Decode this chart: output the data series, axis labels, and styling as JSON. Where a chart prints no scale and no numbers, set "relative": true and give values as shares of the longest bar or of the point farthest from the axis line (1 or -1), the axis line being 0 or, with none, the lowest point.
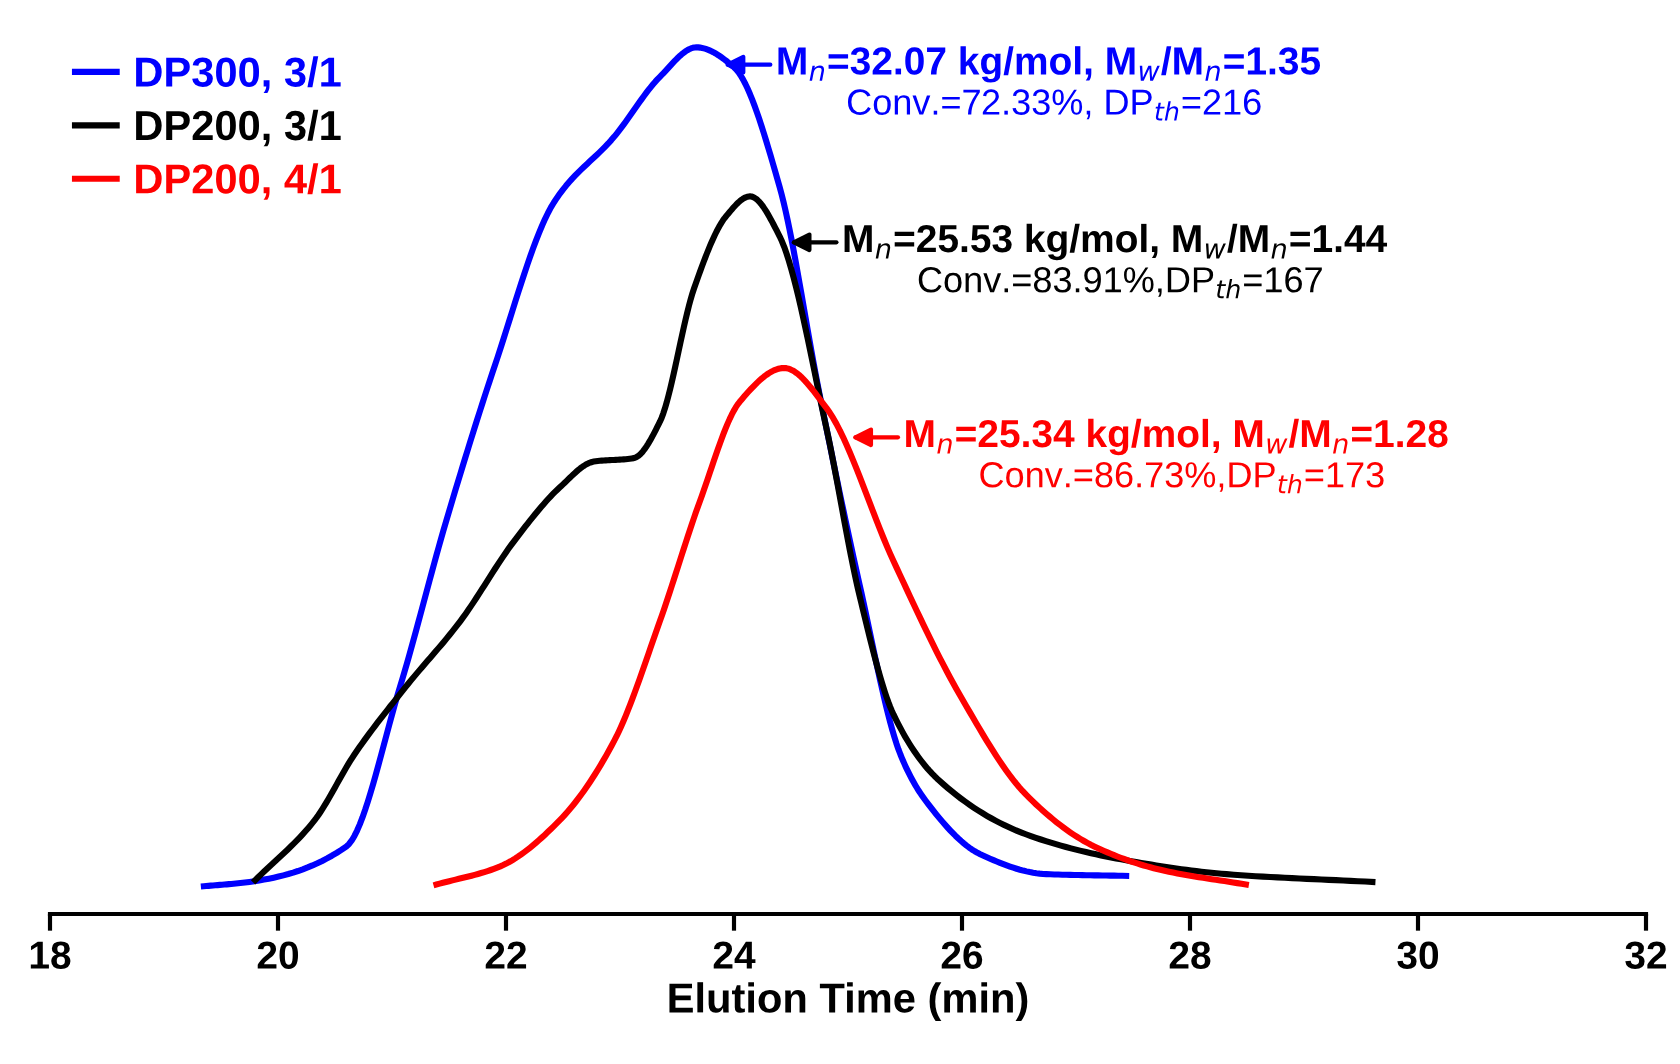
{
  "chart_data": {
    "type": "line",
    "relative": true,
    "xlabel": "Elution Time (min)",
    "xlim": [
      18,
      32
    ],
    "xticks": [
      18,
      20,
      22,
      24,
      26,
      28,
      30,
      32
    ],
    "grid": false,
    "legend": "top left",
    "marker": "none",
    "line_style": "solid",
    "series": [
      {
        "name": "DP300, 3/1",
        "color": "#0000ff",
        "x": [
          19.35,
          19.75,
          20.6,
          21.07,
          21.47,
          21.9,
          22.42,
          22.95,
          23.35,
          23.67,
          24.0,
          24.4,
          24.75,
          25.1,
          25.46,
          25.68,
          26.16,
          26.74,
          27.44
        ],
        "values": [
          0.032,
          0.037,
          0.078,
          0.262,
          0.451,
          0.632,
          0.821,
          0.897,
          0.966,
          1.0,
          0.977,
          0.839,
          0.6,
          0.381,
          0.184,
          0.131,
          0.069,
          0.046,
          0.044
        ]
      },
      {
        "name": "DP200, 3/1",
        "color": "#000000",
        "x": [
          19.8,
          20.32,
          20.67,
          21.12,
          21.6,
          22.07,
          22.47,
          22.77,
          23.12,
          23.35,
          23.65,
          23.93,
          24.14,
          24.4,
          24.81,
          25.1,
          25.4,
          25.8,
          26.56,
          27.44,
          28.32,
          29.6
        ],
        "values": [
          0.039,
          0.108,
          0.184,
          0.262,
          0.338,
          0.43,
          0.492,
          0.522,
          0.526,
          0.568,
          0.722,
          0.805,
          0.828,
          0.782,
          0.561,
          0.368,
          0.23,
          0.154,
          0.092,
          0.062,
          0.046,
          0.037
        ]
      },
      {
        "name": "DP200, 4/1",
        "color": "#ff0000",
        "x": [
          21.39,
          21.95,
          22.47,
          22.95,
          23.35,
          23.7,
          24.05,
          24.44,
          24.81,
          25.4,
          25.98,
          26.56,
          27.16,
          27.74,
          28.49
        ],
        "values": [
          0.034,
          0.055,
          0.108,
          0.2,
          0.338,
          0.476,
          0.591,
          0.63,
          0.584,
          0.407,
          0.253,
          0.138,
          0.078,
          0.051,
          0.034
        ]
      }
    ],
    "annotations": [
      {
        "text": "M$_{n}$=32.07 kg/mol, M$_{w}$/M$_{n}$=1.35",
        "x": 23.88,
        "y": 0.98
      },
      "Conv.=72.33%, DP$_{th}$=216",
      {
        "text": "M$_{n}$=25.53 kg/mol, M$_{w}$/M$_{n}$=1.44",
        "x": 24.46,
        "y": 0.775
      },
      "Conv.=83.91%,DP$_{th}$=167",
      {
        "text": "M$_{n}$=25.34 kg/mol, M$_{w}$/M$_{n}$=1.28",
        "x": 25.0,
        "y": 0.55
      },
      "Conv.=86.73%,DP$_{th}$=173"
    ]
  }
}
